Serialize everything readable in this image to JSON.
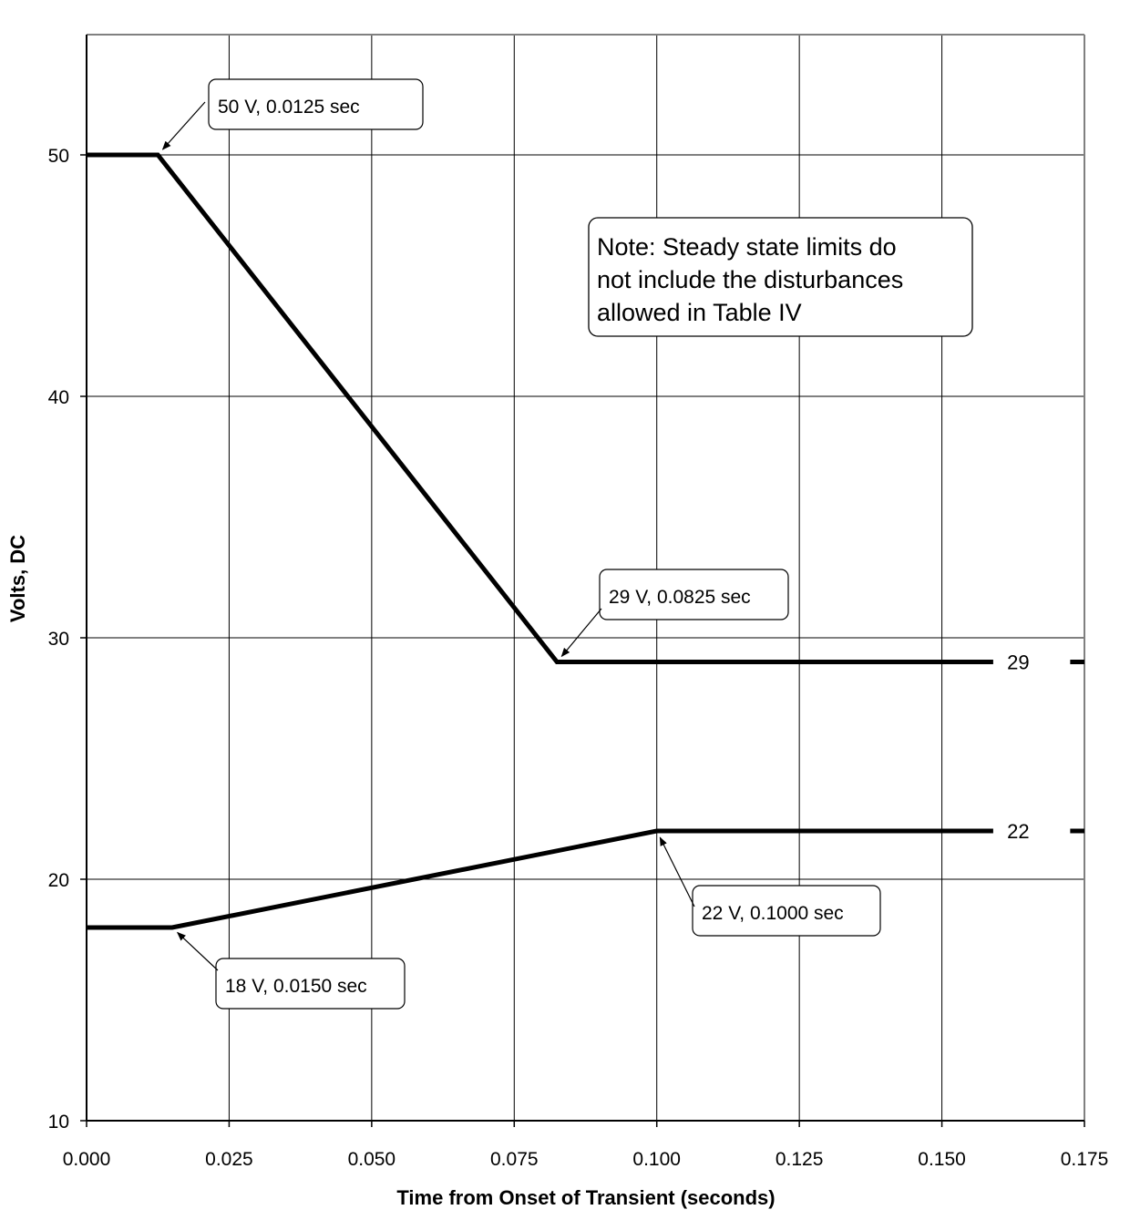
{
  "chart_data": {
    "type": "line",
    "title": "",
    "xlabel": "Time from Onset of Transient (seconds)",
    "ylabel": "Volts, DC",
    "xlim": [
      0,
      0.175
    ],
    "ylim": [
      10,
      55
    ],
    "grid": true,
    "x_ticks": [
      "0.000",
      "0.025",
      "0.050",
      "0.075",
      "0.100",
      "0.125",
      "0.150",
      "0.175"
    ],
    "y_ticks": [
      "10",
      "20",
      "30",
      "40",
      "50"
    ],
    "series": [
      {
        "color": "#000000",
        "points": [
          [
            0,
            50
          ],
          [
            0.0125,
            50
          ],
          [
            0.0825,
            29
          ],
          [
            0.159,
            29
          ]
        ],
        "end_label": "29",
        "end_label_x": 0.165,
        "dash_from": 0.1725,
        "dash_to": 0.175
      },
      {
        "color": "#000000",
        "points": [
          [
            0,
            18
          ],
          [
            0.015,
            18
          ],
          [
            0.1,
            22
          ],
          [
            0.159,
            22
          ]
        ],
        "end_label": "22",
        "end_label_x": 0.165,
        "dash_from": 0.1725,
        "dash_to": 0.175
      }
    ],
    "annotations": [
      {
        "text": "50 V, 0.0125 sec",
        "x": 0.0125,
        "y": 50
      },
      {
        "text": "29 V, 0.0825 sec",
        "x": 0.0825,
        "y": 29
      },
      {
        "text": "22 V, 0.1000 sec",
        "x": 0.1,
        "y": 22
      },
      {
        "text": "18 V, 0.0150 sec",
        "x": 0.015,
        "y": 18
      }
    ],
    "note": {
      "lines": [
        "Note: Steady state limits do",
        "not include the disturbances",
        "allowed in Table IV"
      ]
    }
  }
}
